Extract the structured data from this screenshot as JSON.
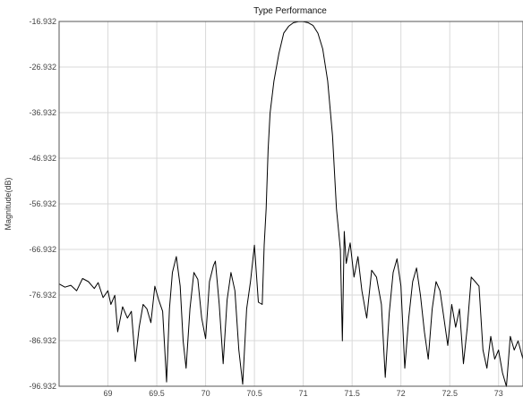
{
  "chart_data": {
    "type": "line",
    "title": "Type Performance",
    "xlabel": "",
    "ylabel": "Magnitude(dB)",
    "xlim": [
      68.5,
      73.25
    ],
    "ylim": [
      -96.932,
      -16.932
    ],
    "x_ticks": [
      "69",
      "69.5",
      "70",
      "70.5",
      "71",
      "71.5",
      "72",
      "72.5",
      "73"
    ],
    "y_ticks": [
      "-16.932",
      "-26.932",
      "-36.932",
      "-46.932",
      "-56.932",
      "-66.932",
      "-76.932",
      "-86.932",
      "-96.932"
    ],
    "grid": true,
    "legend": "none",
    "series": [
      {
        "color": "#000000",
        "x": [
          68.5,
          68.56,
          68.62,
          68.68,
          68.74,
          68.8,
          68.86,
          68.9,
          68.95,
          69.0,
          69.03,
          69.07,
          69.1,
          69.15,
          69.2,
          69.24,
          69.28,
          69.32,
          69.36,
          69.4,
          69.44,
          69.48,
          69.52,
          69.56,
          69.6,
          69.63,
          69.66,
          69.7,
          69.74,
          69.77,
          69.8,
          69.84,
          69.88,
          69.92,
          69.96,
          70.0,
          70.04,
          70.08,
          70.1,
          70.14,
          70.18,
          70.22,
          70.26,
          70.3,
          70.34,
          70.38,
          70.42,
          70.46,
          70.5,
          70.54,
          70.58,
          70.6,
          70.62,
          70.64,
          70.66,
          70.7,
          70.75,
          70.8,
          70.85,
          70.9,
          70.95,
          71.0,
          71.05,
          71.1,
          71.15,
          71.2,
          71.25,
          71.3,
          71.34,
          71.38,
          71.4,
          71.42,
          71.44,
          71.48,
          71.52,
          71.56,
          71.6,
          71.65,
          71.7,
          71.75,
          71.8,
          71.84,
          71.88,
          71.92,
          71.96,
          72.0,
          72.04,
          72.08,
          72.12,
          72.16,
          72.2,
          72.24,
          72.28,
          72.32,
          72.36,
          72.4,
          72.44,
          72.48,
          72.52,
          72.56,
          72.6,
          72.64,
          72.68,
          72.72,
          72.76,
          72.8,
          72.84,
          72.88,
          72.92,
          72.96,
          73.0,
          73.04,
          73.08,
          73.12,
          73.16,
          73.2,
          73.25
        ],
        "y": [
          -74.5,
          -75.2,
          -74.8,
          -76.0,
          -73.3,
          -74.0,
          -75.5,
          -74.2,
          -77.5,
          -76.0,
          -79.0,
          -77.0,
          -85.0,
          -79.5,
          -82.0,
          -80.5,
          -91.5,
          -84.0,
          -79.0,
          -80.0,
          -83.0,
          -75.0,
          -78.0,
          -80.5,
          -96.0,
          -80.0,
          -72.0,
          -68.5,
          -75.0,
          -87.0,
          -93.0,
          -80.0,
          -72.0,
          -73.5,
          -82.0,
          -86.5,
          -74.0,
          -70.5,
          -69.5,
          -79.0,
          -92.0,
          -78.0,
          -72.0,
          -76.0,
          -89.0,
          -96.5,
          -80.0,
          -74.0,
          -66.0,
          -78.5,
          -79.0,
          -66.0,
          -58.0,
          -45.0,
          -37.0,
          -30.0,
          -24.0,
          -19.5,
          -18.0,
          -17.2,
          -17.0,
          -17.0,
          -17.2,
          -17.8,
          -19.5,
          -23.0,
          -30.0,
          -42.0,
          -58.0,
          -67.0,
          -87.0,
          -63.0,
          -70.0,
          -65.5,
          -73.0,
          -68.5,
          -76.0,
          -82.0,
          -71.5,
          -73.0,
          -79.0,
          -95.0,
          -81.0,
          -72.0,
          -69.0,
          -75.0,
          -93.0,
          -82.0,
          -74.0,
          -71.0,
          -77.0,
          -85.0,
          -91.0,
          -80.0,
          -74.0,
          -76.0,
          -82.0,
          -88.0,
          -79.0,
          -84.0,
          -80.0,
          -92.0,
          -84.0,
          -73.0,
          -74.0,
          -75.0,
          -89.0,
          -93.0,
          -86.0,
          -91.0,
          -89.0,
          -94.0,
          -97.0,
          -86.0,
          -89.0,
          -87.0,
          -91.0
        ]
      }
    ]
  }
}
